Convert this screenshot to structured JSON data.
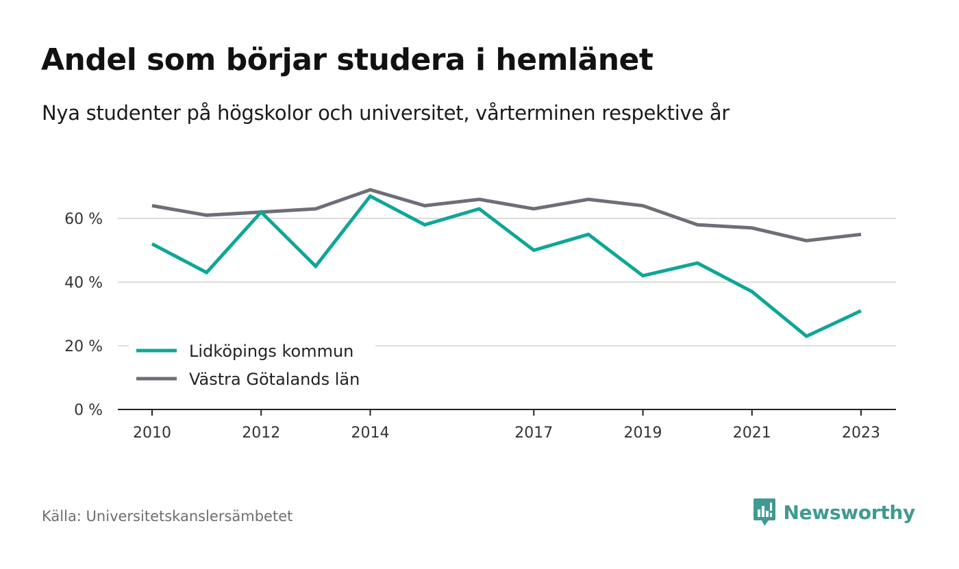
{
  "header": {
    "title": "Andel som börjar studera i hemlänet",
    "subtitle": "Nya studenter på högskolor och universitet, vårterminen respektive år"
  },
  "footer": {
    "source": "Källa: Universitetskanslersämbetet",
    "brand": "Newsworthy"
  },
  "colors": {
    "primary": "#0ea698",
    "secondary": "#6f6e76",
    "grid": "#dddddd",
    "axis": "#222222",
    "brand": "#3f9a92"
  },
  "chart_data": {
    "type": "line",
    "x": [
      2010,
      2011,
      2012,
      2013,
      2014,
      2015,
      2016,
      2017,
      2018,
      2019,
      2020,
      2021,
      2022,
      2023
    ],
    "x_tick_labels": [
      "2010",
      "2012",
      "2014",
      "2017",
      "2019",
      "2021",
      "2023"
    ],
    "x_ticks": [
      2010,
      2012,
      2014,
      2017,
      2019,
      2021,
      2023
    ],
    "y_ticks": [
      0,
      20,
      40,
      60
    ],
    "y_tick_labels": [
      "0 %",
      "20 %",
      "40 %",
      "60 %"
    ],
    "ylim": [
      0,
      70
    ],
    "grid": true,
    "legend_position": "bottom-left",
    "series": [
      {
        "name": "Lidköpings kommun",
        "color": "#0ea698",
        "values": [
          52,
          43,
          62,
          45,
          67,
          58,
          63,
          50,
          55,
          42,
          46,
          37,
          23,
          31
        ]
      },
      {
        "name": "Västra Götalands län",
        "color": "#6f6e76",
        "values": [
          64,
          61,
          62,
          63,
          69,
          64,
          66,
          63,
          66,
          64,
          58,
          57,
          53,
          55
        ]
      }
    ]
  }
}
